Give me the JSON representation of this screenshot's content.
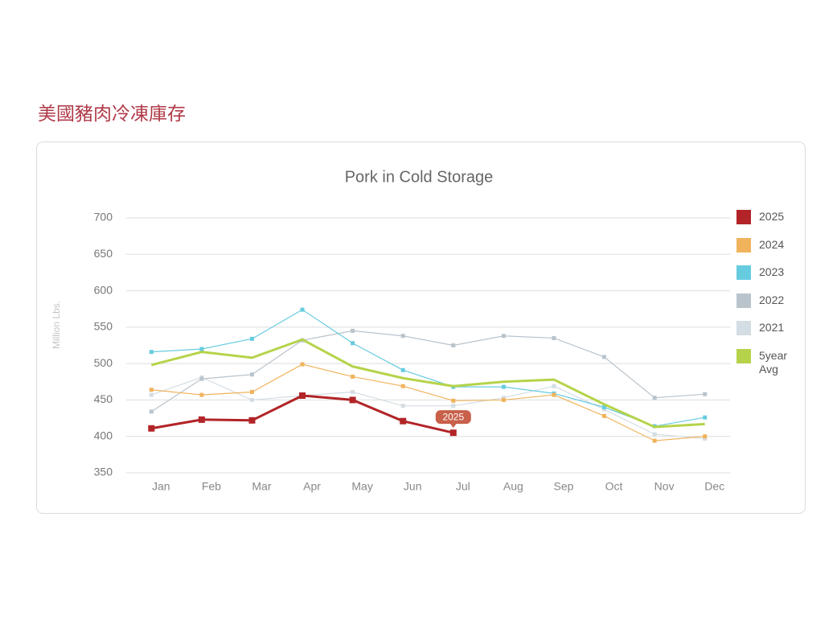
{
  "page_heading": "美國豬肉冷凍庫存",
  "chart_data": {
    "type": "line",
    "title": "Pork in Cold Storage",
    "y_label": "Million Lbs.",
    "categories": [
      "Jan",
      "Feb",
      "Mar",
      "Apr",
      "May",
      "Jun",
      "Jul",
      "Aug",
      "Sep",
      "Oct",
      "Nov",
      "Dec"
    ],
    "ylim": [
      350,
      700
    ],
    "yticks": [
      350,
      400,
      450,
      500,
      550,
      600,
      650,
      700
    ],
    "grid": true,
    "legend": "right",
    "series": [
      {
        "name": "2025",
        "color": "#b22427",
        "markers": true,
        "values": [
          411,
          423,
          422,
          456,
          450,
          421,
          405,
          null,
          null,
          null,
          null,
          null
        ]
      },
      {
        "name": "2024",
        "color": "#f0b35c",
        "markers": true,
        "values": [
          464,
          457,
          461,
          499,
          482,
          469,
          449,
          450,
          457,
          428,
          394,
          400
        ]
      },
      {
        "name": "2023",
        "color": "#67cbe0",
        "markers": true,
        "values": [
          516,
          520,
          534,
          574,
          528,
          491,
          468,
          468,
          459,
          440,
          414,
          426
        ]
      },
      {
        "name": "2022",
        "color": "#b9c3cb",
        "markers": true,
        "values": [
          434,
          479,
          485,
          532,
          545,
          538,
          525,
          538,
          535,
          509,
          453,
          458
        ]
      },
      {
        "name": "2021",
        "color": "#d4dde3",
        "markers": true,
        "values": [
          457,
          481,
          450,
          456,
          461,
          442,
          442,
          453,
          469,
          437,
          403,
          397
        ]
      },
      {
        "name": "5year Avg",
        "color": "#b5d34a",
        "markers": false,
        "values": [
          498,
          516,
          508,
          533,
          496,
          480,
          469,
          475,
          478,
          444,
          413,
          417
        ]
      }
    ]
  }
}
